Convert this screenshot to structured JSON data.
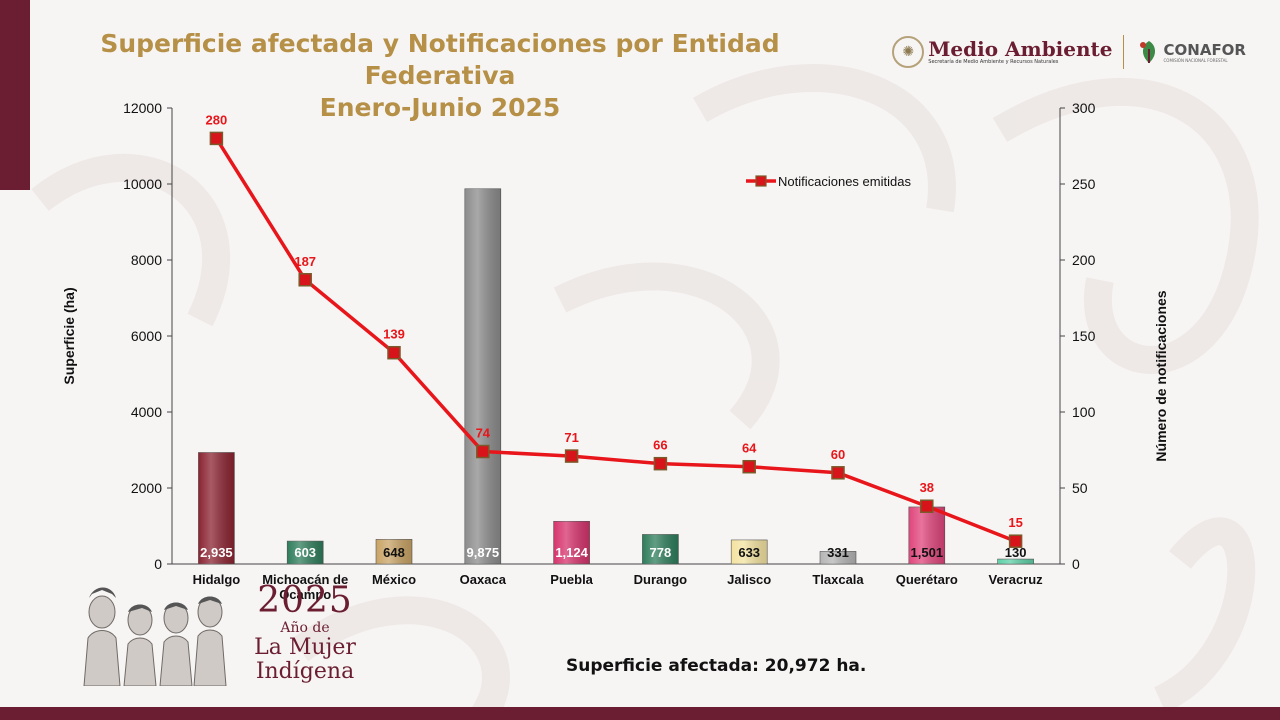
{
  "header": {
    "title_line1": "Superficie afectada y Notificaciones por Entidad Federativa",
    "title_line2": "Enero-Junio 2025"
  },
  "logos": {
    "medio_ambiente": "Medio Ambiente",
    "medio_ambiente_sub": "Secretaría de Medio Ambiente y Recursos Naturales",
    "conafor": "CONAFOR",
    "conafor_sub": "COMISIÓN NACIONAL FORESTAL"
  },
  "emblem": {
    "year": "2025",
    "line1": "Año de",
    "line2": "La Mujer",
    "line3": "Indígena"
  },
  "footer": {
    "total_text": "Superficie afectada: 20,972  ha."
  },
  "colors": {
    "brand": "#6b1e31",
    "gold": "#b59046",
    "line": "#e8161b"
  },
  "chart_data": {
    "type": "bar",
    "categories": [
      "Hidalgo",
      "Michoacán de Ocampo",
      "México",
      "Oaxaca",
      "Puebla",
      "Durango",
      "Jalisco",
      "Tlaxcala",
      "Querétaro",
      "Veracruz"
    ],
    "series": [
      {
        "type": "bar",
        "axis": "left",
        "values": [
          2935,
          603,
          648,
          9875,
          1124,
          778,
          633,
          331,
          1501,
          130
        ],
        "labels": [
          "2,935",
          "603",
          "648",
          "9,875",
          "1,124",
          "778",
          "633",
          "331",
          "1,501",
          "130"
        ],
        "colors": [
          "#8b2432",
          "#2e7d5b",
          "#c9a466",
          "#8c8c8c",
          "#d6336c",
          "#2e7d5b",
          "#f3e3a0",
          "#b5b5b5",
          "#e0457b",
          "#5ed1a8"
        ],
        "label_colors": [
          "#ffffff",
          "#ffffff",
          "#111111",
          "#ffffff",
          "#ffffff",
          "#ffffff",
          "#111111",
          "#111111",
          "#111111",
          "#111111"
        ]
      },
      {
        "type": "line",
        "axis": "right",
        "name": "Notificaciones emitidas",
        "values": [
          280,
          187,
          139,
          74,
          71,
          66,
          64,
          60,
          38,
          15
        ]
      }
    ],
    "ylabel": "Superficie (ha)",
    "y2label": "Número de notificaciones",
    "ylim": [
      0,
      12000
    ],
    "y2lim": [
      0,
      300
    ],
    "yticks": [
      "0",
      "2000",
      "4000",
      "6000",
      "8000",
      "10000",
      "12000"
    ],
    "y2ticks": [
      "0",
      "50",
      "100",
      "150",
      "200",
      "250",
      "300"
    ],
    "legend_position": "top-right",
    "grid": false
  }
}
